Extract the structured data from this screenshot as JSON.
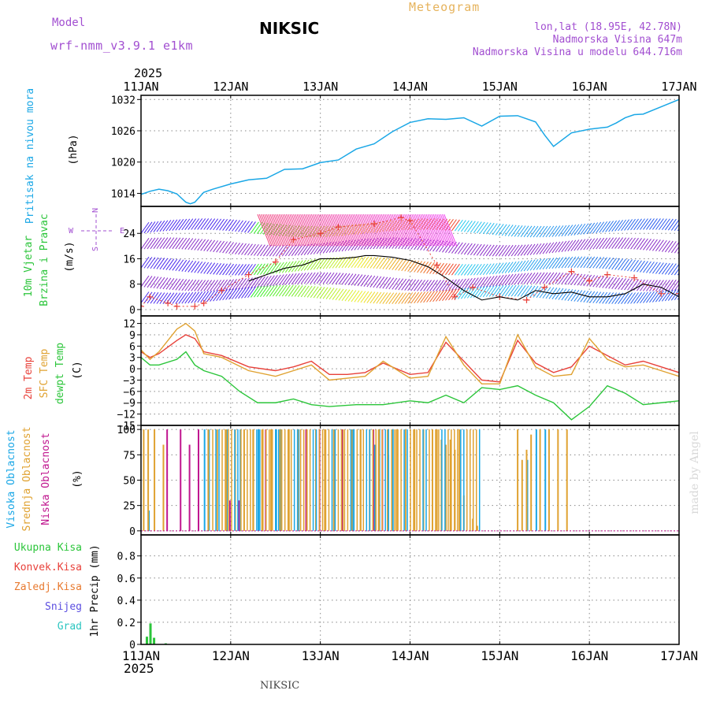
{
  "header": {
    "model_label": "Model",
    "model_name": "wrf-nmm_v3.9.1 e1km",
    "station": "NIKSIC",
    "product": "Meteogram",
    "lonlat": "lon,lat (18.95E, 42.78N)",
    "elevation": "Nadmorska Visina 647m",
    "model_elevation": "Nadmorska Visina u modelu 644.716m",
    "footer_station": "NIKSIC",
    "credit": "made by Angel"
  },
  "colors": {
    "pressure": "#1aa7e6",
    "wind_label": "#2bc53a",
    "temp2m": "#e8413a",
    "sfc": "#e0a231",
    "dew": "#2bc53a",
    "high_cloud": "#1aa7e6",
    "mid_cloud": "#e0a231",
    "low_cloud": "#c0168f",
    "model": "#a24fd1",
    "product": "#e6b35c"
  },
  "time_axis": {
    "year": "2025",
    "day_labels": [
      "11JAN",
      "12JAN",
      "13JAN",
      "14JAN",
      "15JAN",
      "16JAN",
      "17JAN"
    ],
    "day_range": [
      0,
      6
    ]
  },
  "chart_data": [
    {
      "id": "pressure",
      "type": "line",
      "ylabel": "(hPa)",
      "side_label": [
        "Pritisak na nivou mora"
      ],
      "yticks": [
        1014,
        1020,
        1026,
        1032
      ],
      "ylim": [
        1011.5,
        1032.8
      ],
      "grid": true,
      "series": [
        {
          "x": [
            0,
            0.1,
            0.2,
            0.3,
            0.4,
            0.5,
            0.55,
            0.6,
            0.7,
            0.8,
            1.0,
            1.2,
            1.4,
            1.6,
            1.8,
            2.0,
            2.2,
            2.4,
            2.6,
            2.8,
            3.0,
            3.2,
            3.4,
            3.6,
            3.8,
            4.0,
            4.2,
            4.4,
            4.5,
            4.6,
            4.8,
            5.0,
            5.2,
            5.3,
            5.4,
            5.5,
            5.6,
            5.8,
            6.0
          ],
          "y": [
            1013.8,
            1014.4,
            1014.8,
            1014.5,
            1013.9,
            1012.3,
            1012.0,
            1012.3,
            1014.2,
            1014.8,
            1015.8,
            1016.6,
            1016.9,
            1018.6,
            1018.7,
            1019.9,
            1020.4,
            1022.5,
            1023.5,
            1025.8,
            1027.6,
            1028.3,
            1028.2,
            1028.5,
            1026.9,
            1028.8,
            1028.9,
            1027.7,
            1025.2,
            1023.0,
            1025.6,
            1026.3,
            1026.7,
            1027.5,
            1028.5,
            1029.1,
            1029.2,
            1030.6,
            1032.0
          ]
        }
      ]
    },
    {
      "id": "wind",
      "type": "line",
      "ylabel": "(m/s)",
      "side_label": [
        "10m Vjetar",
        "Brzina i Pravac"
      ],
      "compass": {
        "north": "N",
        "south": "S",
        "west": "W",
        "east": "E"
      },
      "yticks": [
        0,
        8,
        16,
        24
      ],
      "ylim": [
        -2,
        32.5
      ],
      "grid": true,
      "series": [
        {
          "name": "gust",
          "x": [
            0,
            0.1,
            0.3,
            0.4,
            0.6,
            0.7,
            0.9,
            1.2,
            1.5,
            1.7,
            2.0,
            2.2,
            2.6,
            2.9,
            3.0,
            3.3,
            3.5,
            3.7,
            4.0,
            4.3,
            4.5,
            4.8,
            5.0,
            5.2,
            5.5,
            5.8,
            6.0
          ],
          "y": [
            1,
            4,
            2,
            1,
            1,
            2,
            6,
            11,
            15,
            22,
            24,
            26,
            27,
            29,
            28,
            14,
            4,
            7,
            4,
            3,
            7,
            12,
            9,
            11,
            10,
            5,
            5
          ]
        },
        {
          "name": "speed",
          "x": [
            1.2,
            1.4,
            1.6,
            1.8,
            2.0,
            2.2,
            2.4,
            2.5,
            2.6,
            2.8,
            3.0,
            3.2,
            3.4,
            3.6,
            3.8,
            4.0,
            4.2,
            4.4,
            4.6,
            4.8,
            5.0,
            5.2,
            5.4,
            5.6,
            5.8,
            6.0
          ],
          "y": [
            9,
            11,
            13,
            14,
            16,
            16,
            16.5,
            17,
            17,
            16.5,
            15.5,
            13.5,
            10,
            6,
            3,
            4,
            3,
            6,
            5,
            5.5,
            4,
            4,
            5,
            8,
            7,
            4
          ]
        }
      ]
    },
    {
      "id": "temperature",
      "type": "line",
      "ylabel": "(C)",
      "side_label": [
        "2m Temp",
        "SFC Temp",
        "dewpt Temp"
      ],
      "yticks": [
        -15,
        -12,
        -9,
        -6,
        -3,
        0,
        3,
        6,
        9,
        12
      ],
      "ylim": [
        -15,
        14
      ],
      "grid": true,
      "series": [
        {
          "name": "2m Temp",
          "x": [
            0,
            0.1,
            0.2,
            0.4,
            0.5,
            0.6,
            0.7,
            0.9,
            1.2,
            1.5,
            1.7,
            1.9,
            2.1,
            2.3,
            2.5,
            2.7,
            3.0,
            3.2,
            3.4,
            3.6,
            3.8,
            4.0,
            4.2,
            4.4,
            4.6,
            4.8,
            5.0,
            5.2,
            5.4,
            5.6,
            5.8,
            6.0
          ],
          "y": [
            4.5,
            3.0,
            4.0,
            7.5,
            9.0,
            8.0,
            4.5,
            3.5,
            0.5,
            -0.5,
            0.5,
            2.0,
            -1.5,
            -1.5,
            -1.0,
            1.5,
            -1.5,
            -1.0,
            7.0,
            2.0,
            -3.0,
            -3.5,
            7.5,
            1.5,
            -1.0,
            0.5,
            6.0,
            3.5,
            1.0,
            2.0,
            0.5,
            -1.0
          ]
        },
        {
          "name": "SFC Temp",
          "x": [
            0,
            0.1,
            0.2,
            0.4,
            0.5,
            0.6,
            0.7,
            0.9,
            1.2,
            1.5,
            1.7,
            1.9,
            2.1,
            2.3,
            2.5,
            2.7,
            3.0,
            3.2,
            3.4,
            3.6,
            3.8,
            4.0,
            4.2,
            4.4,
            4.6,
            4.8,
            5.0,
            5.2,
            5.4,
            5.6,
            5.8,
            6.0
          ],
          "y": [
            5.0,
            2.5,
            4.5,
            10.5,
            12.0,
            10.0,
            4.0,
            3.0,
            -0.5,
            -2.0,
            -0.5,
            1.0,
            -3.0,
            -2.5,
            -2.0,
            2.0,
            -2.5,
            -2.0,
            8.5,
            1.0,
            -4.0,
            -4.0,
            9.0,
            0.5,
            -2.0,
            -1.5,
            8.0,
            2.5,
            0.5,
            1.0,
            -0.5,
            -2.0
          ]
        },
        {
          "name": "dewpt Temp",
          "x": [
            0,
            0.1,
            0.2,
            0.4,
            0.5,
            0.6,
            0.7,
            0.9,
            1.1,
            1.3,
            1.5,
            1.7,
            1.9,
            2.1,
            2.4,
            2.7,
            3.0,
            3.2,
            3.4,
            3.6,
            3.8,
            4.0,
            4.2,
            4.4,
            4.6,
            4.8,
            5.0,
            5.2,
            5.4,
            5.6,
            5.8,
            6.0
          ],
          "y": [
            3.0,
            1.0,
            1.0,
            2.5,
            4.5,
            1.0,
            -0.5,
            -2.0,
            -6.0,
            -9.0,
            -9.0,
            -8.0,
            -9.5,
            -10.0,
            -9.5,
            -9.5,
            -8.5,
            -9.0,
            -7.0,
            -9.0,
            -5.0,
            -5.5,
            -4.5,
            -7.0,
            -9.0,
            -13.5,
            -10.0,
            -4.5,
            -6.5,
            -9.5,
            -9.0,
            -8.5
          ]
        }
      ]
    },
    {
      "id": "cloud",
      "type": "bar",
      "ylabel": "(%)",
      "side_label": [
        "Visoka Oblacnost",
        "Srednja Oblacnost",
        "Niska Oblacnost"
      ],
      "yticks": [
        0,
        25,
        50,
        75,
        100
      ],
      "ylim": [
        -4,
        104
      ],
      "grid": true,
      "series": [
        {
          "name": "Visoka Oblacnost",
          "x": [
            0.08,
            0.7,
            0.75,
            0.95,
            1.1,
            1.3,
            1.5,
            1.55,
            1.75,
            2.15,
            2.35,
            2.6,
            2.65,
            2.75,
            2.8,
            4.3,
            4.4,
            4.5
          ],
          "y": [
            20,
            100,
            100,
            100,
            100,
            100,
            100,
            100,
            100,
            100,
            100,
            85,
            100,
            75,
            100,
            70,
            100,
            100
          ]
        },
        {
          "name": "Srednja Oblacnost",
          "x": [
            0.03,
            0.08,
            0.15,
            0.25,
            0.75,
            0.85,
            0.95,
            1.05,
            1.15,
            1.25,
            1.35,
            1.45,
            1.55,
            1.65,
            1.75,
            1.85,
            1.95,
            2.05,
            2.15,
            2.25,
            2.35,
            2.45,
            2.55,
            2.65,
            2.75,
            2.85,
            2.95,
            3.05,
            3.15,
            3.25,
            3.3,
            3.35,
            3.4,
            3.45,
            3.5,
            3.55,
            3.6,
            3.7,
            3.75,
            4.2,
            4.25,
            4.3,
            4.35,
            4.45,
            4.55,
            4.65,
            4.75
          ],
          "y": [
            100,
            100,
            100,
            85,
            100,
            100,
            100,
            100,
            100,
            100,
            100,
            100,
            100,
            100,
            100,
            100,
            100,
            100,
            100,
            100,
            100,
            100,
            100,
            100,
            100,
            100,
            100,
            100,
            100,
            100,
            100,
            90,
            85,
            90,
            80,
            100,
            35,
            12,
            5,
            100,
            70,
            80,
            95,
            100,
            100,
            100,
            100
          ]
        },
        {
          "name": "Niska Oblacnost",
          "x": [
            0.3,
            0.45,
            0.55,
            0.65,
            1.0,
            1.1,
            1.4,
            1.85,
            2.0,
            2.25,
            2.6,
            2.7
          ],
          "y": [
            100,
            100,
            85,
            100,
            30,
            30,
            100,
            100,
            100,
            100,
            100,
            100
          ]
        }
      ]
    },
    {
      "id": "precip",
      "type": "bar",
      "ylabel": "1hr Precip (mm)",
      "side_label": [
        "Ukupna Kisa",
        "Konvek.Kisa",
        "Zaledj.Kisa",
        "Snijeg",
        "Grad"
      ],
      "yticks": [
        0,
        0.2,
        0.4,
        0.6,
        0.8
      ],
      "ylim": [
        0,
        0.99
      ],
      "grid": true,
      "series": [
        {
          "name": "Ukupna Kisa",
          "x": [
            0.07,
            0.11,
            0.15,
            0.28
          ],
          "y": [
            0.07,
            0.19,
            0.06,
            0.01
          ]
        }
      ]
    }
  ]
}
